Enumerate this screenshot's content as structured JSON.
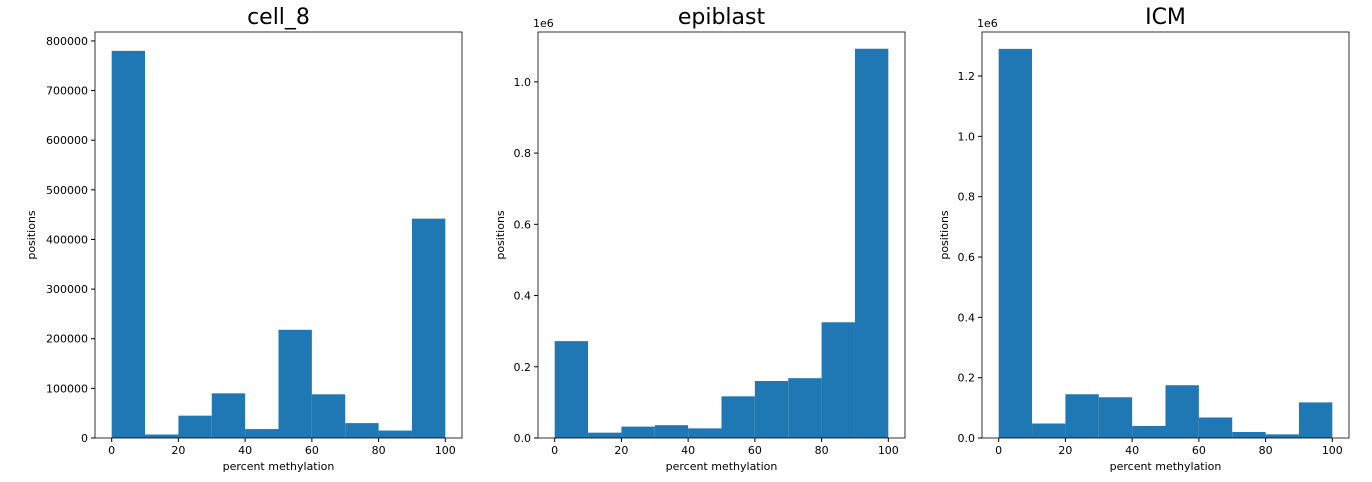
{
  "chart_data": [
    {
      "type": "histogram",
      "title": "cell_8",
      "xlabel": "percent methylation",
      "ylabel": "positions",
      "color": "#1f77b4",
      "bins": [
        0,
        10,
        20,
        30,
        40,
        50,
        60,
        70,
        80,
        90,
        100
      ],
      "values": [
        780000,
        7000,
        45000,
        90000,
        18000,
        218000,
        88000,
        30000,
        15000,
        442000
      ],
      "xlim": [
        -5,
        105
      ],
      "xticks": [
        0,
        20,
        40,
        60,
        80,
        100
      ],
      "ylim": [
        0,
        818000
      ],
      "yticks": [
        0,
        100000,
        200000,
        300000,
        400000,
        500000,
        600000,
        700000,
        800000
      ]
    },
    {
      "type": "histogram",
      "title": "epiblast",
      "xlabel": "percent methylation",
      "ylabel": "positions",
      "color": "#1f77b4",
      "offset_text": "1e6",
      "bins": [
        0,
        10,
        20,
        30,
        40,
        50,
        60,
        70,
        80,
        90,
        100
      ],
      "values": [
        272000,
        15000,
        32000,
        36000,
        27000,
        117000,
        160000,
        168000,
        325000,
        1093000
      ],
      "xlim": [
        -5,
        105
      ],
      "xticks": [
        0,
        20,
        40,
        60,
        80,
        100
      ],
      "ylim": [
        0,
        1140000
      ],
      "yticks": [
        {
          "value": 0,
          "label": "0.0"
        },
        {
          "value": 200000,
          "label": "0.2"
        },
        {
          "value": 400000,
          "label": "0.4"
        },
        {
          "value": 600000,
          "label": "0.6"
        },
        {
          "value": 800000,
          "label": "0.8"
        },
        {
          "value": 1000000,
          "label": "1.0"
        }
      ]
    },
    {
      "type": "histogram",
      "title": "ICM",
      "xlabel": "percent methylation",
      "ylabel": "positions",
      "color": "#1f77b4",
      "offset_text": "1e6",
      "bins": [
        0,
        10,
        20,
        30,
        40,
        50,
        60,
        70,
        80,
        90,
        100
      ],
      "values": [
        1290000,
        48000,
        145000,
        135000,
        40000,
        175000,
        68000,
        20000,
        12000,
        118000
      ],
      "xlim": [
        -5,
        105
      ],
      "xticks": [
        0,
        20,
        40,
        60,
        80,
        100
      ],
      "ylim": [
        0,
        1346000
      ],
      "yticks": [
        {
          "value": 0,
          "label": "0.0"
        },
        {
          "value": 200000,
          "label": "0.2"
        },
        {
          "value": 400000,
          "label": "0.4"
        },
        {
          "value": 600000,
          "label": "0.6"
        },
        {
          "value": 800000,
          "label": "0.8"
        },
        {
          "value": 1000000,
          "label": "1.0"
        },
        {
          "value": 1200000,
          "label": "1.2"
        }
      ]
    }
  ]
}
